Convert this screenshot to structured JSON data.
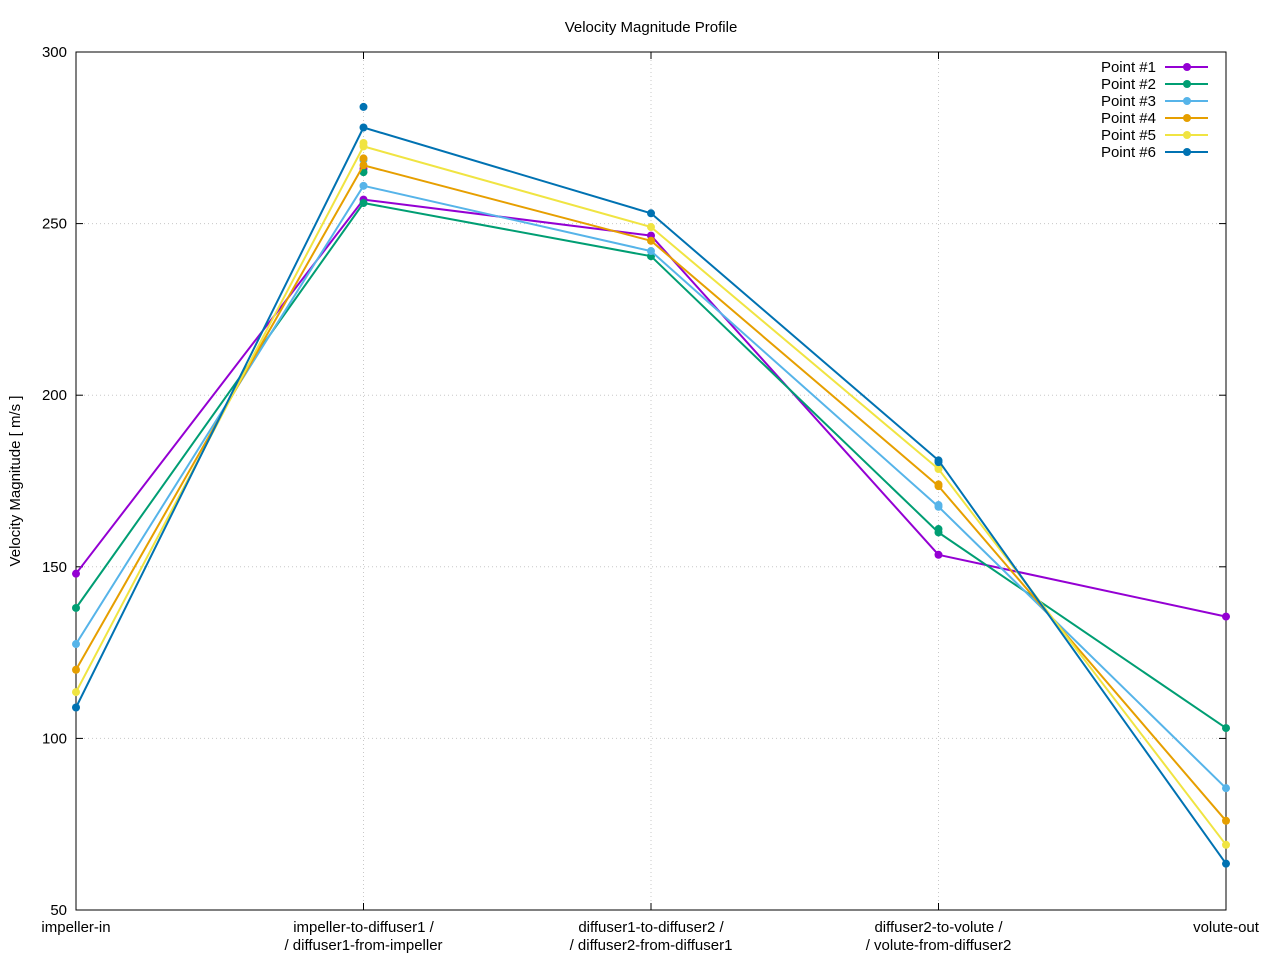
{
  "chart_data": {
    "type": "line",
    "title": "Velocity Magnitude Profile",
    "xlabel": "",
    "ylabel": "Velocity Magnitude [ m/s ]",
    "ylim": [
      50,
      300
    ],
    "yticks": [
      50,
      100,
      150,
      200,
      250,
      300
    ],
    "grid": true,
    "legend_position": "top-right",
    "categories": [
      [
        "impeller-in"
      ],
      [
        "impeller-to-diffuser1 /",
        "/ diffuser1-from-impeller"
      ],
      [
        "diffuser1-to-diffuser2 /",
        "/ diffuser2-from-diffuser1"
      ],
      [
        "diffuser2-to-volute /",
        "/ volute-from-diffuser2"
      ],
      [
        "volute-out"
      ]
    ],
    "series": [
      {
        "name": "Point #1",
        "color": "#9400d3",
        "values": [
          148,
          257,
          246.5,
          153.5,
          135.5
        ],
        "extra": [
          [
            1,
            266
          ]
        ]
      },
      {
        "name": "Point #2",
        "color": "#009e73",
        "values": [
          138,
          256,
          240.5,
          160,
          103
        ],
        "extra": [
          [
            1,
            265
          ],
          [
            3,
            161
          ]
        ]
      },
      {
        "name": "Point #3",
        "color": "#56b4e9",
        "values": [
          127.5,
          261,
          242,
          167.5,
          85.5
        ],
        "extra": [
          [
            1,
            268.5
          ],
          [
            3,
            168
          ]
        ]
      },
      {
        "name": "Point #4",
        "color": "#e69f00",
        "values": [
          120,
          267,
          245,
          173.5,
          76
        ],
        "extra": [
          [
            1,
            269
          ],
          [
            3,
            174
          ]
        ]
      },
      {
        "name": "Point #5",
        "color": "#f0e442",
        "values": [
          113.5,
          272.5,
          249,
          178.5,
          69
        ],
        "extra": [
          [
            1,
            273.5
          ],
          [
            3,
            179
          ]
        ]
      },
      {
        "name": "Point #6",
        "color": "#0072b2",
        "values": [
          109,
          278,
          253,
          181,
          63.5
        ],
        "extra": [
          [
            1,
            284
          ],
          [
            3,
            180.5
          ]
        ]
      }
    ]
  }
}
